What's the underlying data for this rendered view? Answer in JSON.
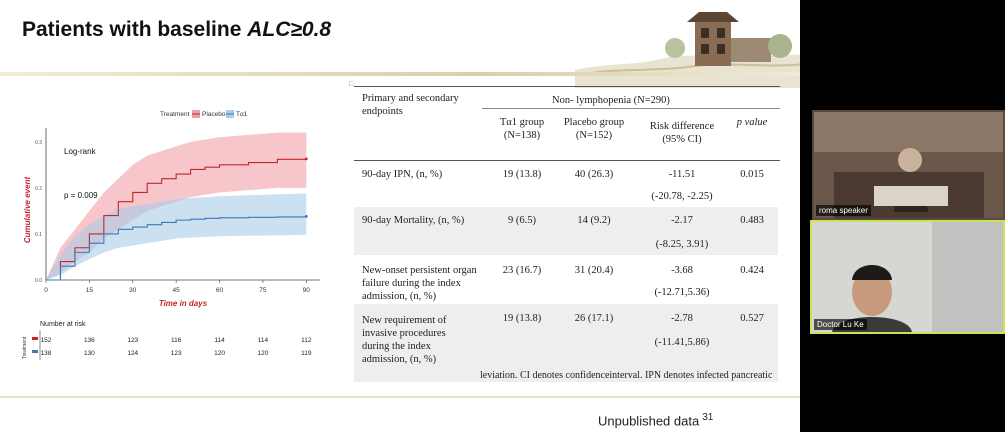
{
  "slide": {
    "title_prefix": "Patients with baseline ",
    "title_italic": "ALC≥0.8",
    "footer_text": "Unpublished data",
    "page_number": "31"
  },
  "km_plot": {
    "legend_label": "Treatment",
    "legend_placebo": "Placebo",
    "legend_ta1": "Tα1",
    "logrank_label": "Log-rank",
    "pvalue_label": "p = 0.009",
    "ylabel": "Cumulative event",
    "xlabel": "Time in days",
    "x_ticks": [
      "0",
      "15",
      "30",
      "45",
      "60",
      "75",
      "90"
    ],
    "y_ticks": [
      "0.0",
      "0.1",
      "0.2",
      "0.3"
    ],
    "risk_title": "Number at risk",
    "risk_side_label": "Treatment",
    "risk_placebo": [
      "152",
      "136",
      "123",
      "116",
      "114",
      "114",
      "112"
    ],
    "risk_ta1": [
      "138",
      "130",
      "124",
      "123",
      "120",
      "120",
      "119"
    ],
    "colors": {
      "placebo": "#c0272d",
      "ta1": "#3a78b8",
      "placebo_band": "#f2a0a6",
      "ta1_band": "#a9cbe8"
    }
  },
  "chart_data": {
    "type": "line",
    "title": "",
    "xlabel": "Time in days",
    "ylabel": "Cumulative event",
    "xlim": [
      0,
      90
    ],
    "ylim": [
      0,
      0.3
    ],
    "legend_title": "Treatment",
    "series": [
      {
        "name": "Placebo",
        "x": [
          0,
          5,
          10,
          15,
          20,
          25,
          30,
          35,
          40,
          45,
          50,
          55,
          60,
          70,
          80,
          90
        ],
        "y": [
          0,
          0.04,
          0.07,
          0.1,
          0.14,
          0.17,
          0.19,
          0.21,
          0.22,
          0.23,
          0.24,
          0.245,
          0.25,
          0.255,
          0.262,
          0.263
        ],
        "band_low": [
          0,
          0.015,
          0.04,
          0.06,
          0.09,
          0.11,
          0.13,
          0.15,
          0.16,
          0.17,
          0.18,
          0.185,
          0.19,
          0.195,
          0.2,
          0.2
        ],
        "band_high": [
          0,
          0.07,
          0.11,
          0.15,
          0.19,
          0.22,
          0.25,
          0.27,
          0.28,
          0.29,
          0.3,
          0.305,
          0.31,
          0.315,
          0.32,
          0.32
        ]
      },
      {
        "name": "Tα1",
        "x": [
          0,
          5,
          10,
          15,
          20,
          25,
          30,
          35,
          40,
          45,
          50,
          55,
          60,
          70,
          80,
          90
        ],
        "y": [
          0,
          0.03,
          0.06,
          0.08,
          0.1,
          0.11,
          0.115,
          0.12,
          0.125,
          0.13,
          0.132,
          0.134,
          0.135,
          0.136,
          0.137,
          0.138
        ],
        "band_low": [
          0,
          0.01,
          0.03,
          0.045,
          0.06,
          0.07,
          0.075,
          0.08,
          0.085,
          0.09,
          0.092,
          0.094,
          0.095,
          0.096,
          0.097,
          0.098
        ],
        "band_high": [
          0,
          0.055,
          0.095,
          0.12,
          0.14,
          0.155,
          0.16,
          0.165,
          0.17,
          0.175,
          0.178,
          0.18,
          0.182,
          0.184,
          0.186,
          0.188
        ]
      }
    ],
    "annotations": [
      "Log-rank",
      "p = 0.009"
    ]
  },
  "table": {
    "header_col0": "Primary and secondary endpoints",
    "header_group": "Non- lymphopenia (N=290)",
    "header_cols": [
      "Tα1 group (N=138)",
      "Placebo group (N=152)",
      "Risk difference (95% CI)",
      "p value"
    ],
    "rows": [
      {
        "endpoint": "90-day IPN, (n, %)",
        "ta1": "19 (13.8)",
        "placebo": "40 (26.3)",
        "rd": "-11.51",
        "ci": "(-20.78, -2.25)",
        "p": "0.015"
      },
      {
        "endpoint": "90-day Mortality, (n, %)",
        "ta1": "9 (6.5)",
        "placebo": "14 (9.2)",
        "rd": "-2.17",
        "ci": "(-8.25, 3.91)",
        "p": "0.483"
      },
      {
        "endpoint": "New-onset persistent organ failure during the index admission, (n, %)",
        "ta1": "23 (16.7)",
        "placebo": "31 (20.4)",
        "rd": "-3.68",
        "ci": "(-12.71,5.36)",
        "p": "0.424"
      },
      {
        "endpoint": "New requirement of invasive procedures during the index admission, (n, %)",
        "ta1": "19 (13.8)",
        "placebo": "26 (17.1)",
        "rd": "-2.78",
        "ci": "(-11.41,5.86)",
        "p": "0.527"
      }
    ],
    "footnote": "leviation. CI denotes confidenceinterval. IPN denotes infected pancreatic"
  },
  "participants": [
    {
      "name": "roma speaker"
    },
    {
      "name": "Doctor Lu Ke"
    }
  ]
}
